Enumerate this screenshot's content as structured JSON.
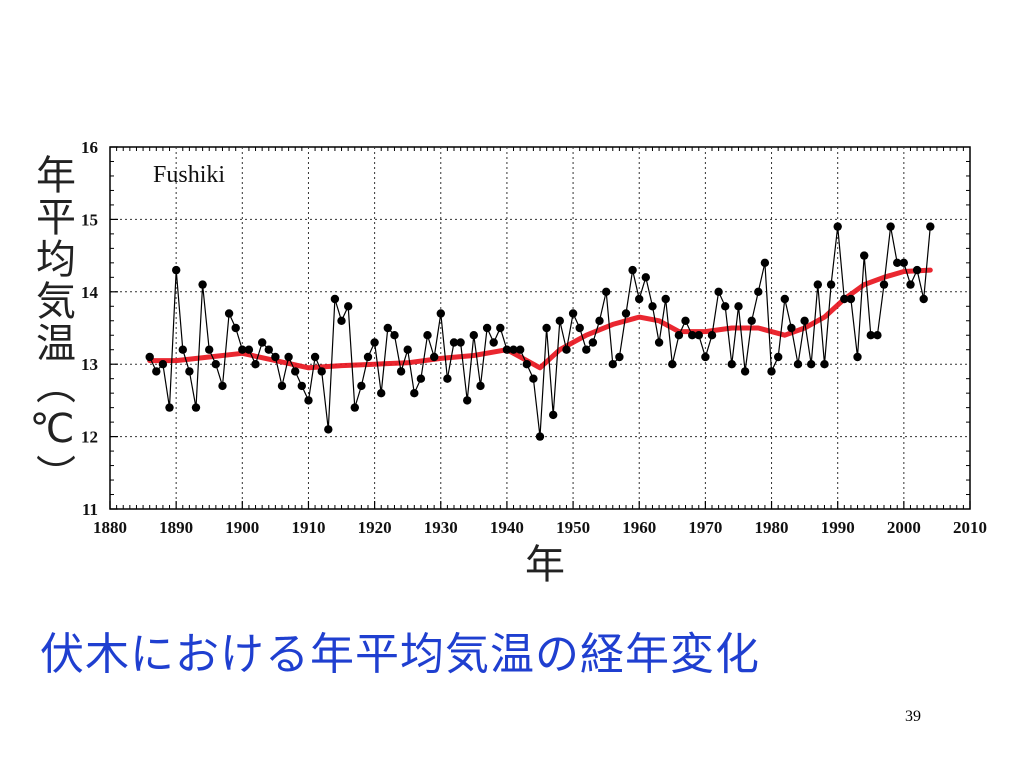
{
  "slide": {
    "title": "伏木における年平均気温の経年変化",
    "page_number": "39"
  },
  "chart_data": {
    "type": "line",
    "station": "Fushiki",
    "xlabel": "年",
    "ylabel": "年平均気温（℃）",
    "xlim": [
      1880,
      2010
    ],
    "ylim": [
      11,
      16
    ],
    "xticks": [
      1880,
      1890,
      1900,
      1910,
      1920,
      1930,
      1940,
      1950,
      1960,
      1970,
      1980,
      1990,
      2000,
      2010
    ],
    "yticks": [
      11,
      12,
      13,
      14,
      15,
      16
    ],
    "grid": true,
    "colors": {
      "annual": "#000000",
      "smoothed": "#e8101a",
      "title": "#1f3fd0"
    },
    "series": [
      {
        "x": [
          1886,
          1887,
          1888,
          1889,
          1890,
          1891,
          1892,
          1893,
          1894,
          1895,
          1896,
          1897,
          1898,
          1899,
          1900,
          1901,
          1902,
          1903,
          1904,
          1905,
          1906,
          1907,
          1908,
          1909,
          1910,
          1911,
          1912,
          1913,
          1914,
          1915,
          1916,
          1917,
          1918,
          1919,
          1920,
          1921,
          1922,
          1923,
          1924,
          1925,
          1926,
          1927,
          1928,
          1929,
          1930,
          1931,
          1932,
          1933,
          1934,
          1935,
          1936,
          1937,
          1938,
          1939,
          1940,
          1941,
          1942,
          1943,
          1944,
          1945,
          1946,
          1947,
          1948,
          1949,
          1950,
          1951,
          1952,
          1953,
          1954,
          1955,
          1956,
          1957,
          1958,
          1959,
          1960,
          1961,
          1962,
          1963,
          1964,
          1965,
          1966,
          1967,
          1968,
          1969,
          1970,
          1971,
          1972,
          1973,
          1974,
          1975,
          1976,
          1977,
          1978,
          1979,
          1980,
          1981,
          1982,
          1983,
          1984,
          1985,
          1986,
          1987,
          1988,
          1989,
          1990,
          1991,
          1992,
          1993,
          1994,
          1995,
          1996,
          1997,
          1998,
          1999,
          2000,
          2001,
          2002,
          2003,
          2004
        ],
        "y": [
          13.1,
          12.9,
          13.0,
          12.4,
          14.3,
          13.2,
          12.9,
          12.4,
          14.1,
          13.2,
          13.0,
          12.7,
          13.7,
          13.5,
          13.2,
          13.2,
          13.0,
          13.3,
          13.2,
          13.1,
          12.7,
          13.1,
          12.9,
          12.7,
          12.5,
          13.1,
          12.9,
          12.1,
          13.9,
          13.6,
          13.8,
          12.4,
          12.7,
          13.1,
          13.3,
          12.6,
          13.5,
          13.4,
          12.9,
          13.2,
          12.6,
          12.8,
          13.4,
          13.1,
          13.7,
          12.8,
          13.3,
          13.3,
          12.5,
          13.4,
          12.7,
          13.5,
          13.3,
          13.5,
          13.2,
          13.2,
          13.2,
          13.0,
          12.8,
          12.0,
          13.5,
          12.3,
          13.6,
          13.2,
          13.7,
          13.5,
          13.2,
          13.3,
          13.6,
          14.0,
          13.0,
          13.1,
          13.7,
          14.3,
          13.9,
          14.2,
          13.8,
          13.3,
          13.9,
          13.0,
          13.4,
          13.6,
          13.4,
          13.4,
          13.1,
          13.4,
          14.0,
          13.8,
          13.0,
          13.8,
          12.9,
          13.6,
          14.0,
          14.4,
          12.9,
          13.1,
          13.9,
          13.5,
          13.0,
          13.6,
          13.0,
          14.1,
          13.0,
          14.1,
          14.9,
          13.9,
          13.9,
          13.1,
          14.5,
          13.4,
          13.4,
          14.1,
          14.9,
          14.4,
          14.4,
          14.1,
          14.3,
          13.9,
          14.9
        ]
      },
      {
        "x": [
          1886,
          1890,
          1895,
          1900,
          1905,
          1910,
          1915,
          1920,
          1925,
          1930,
          1935,
          1940,
          1943,
          1945,
          1948,
          1952,
          1956,
          1960,
          1963,
          1966,
          1970,
          1974,
          1978,
          1982,
          1985,
          1988,
          1991,
          1994,
          1997,
          2000,
          2004
        ],
        "y": [
          13.05,
          13.05,
          13.1,
          13.15,
          13.05,
          12.95,
          12.98,
          13.0,
          13.02,
          13.08,
          13.12,
          13.2,
          13.05,
          12.95,
          13.2,
          13.4,
          13.55,
          13.65,
          13.6,
          13.45,
          13.45,
          13.5,
          13.5,
          13.4,
          13.5,
          13.65,
          13.9,
          14.1,
          14.2,
          14.28,
          14.3
        ]
      }
    ]
  }
}
